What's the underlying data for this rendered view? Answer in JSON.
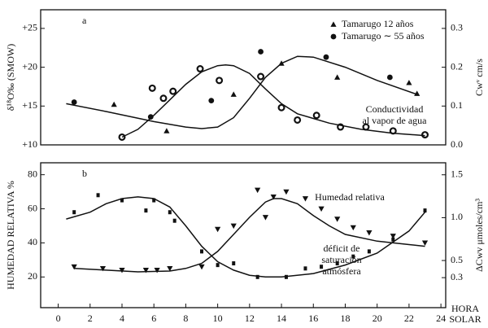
{
  "chart_data": [
    {
      "type": "scatter-line",
      "panel_label": "a",
      "ylabel": "δ¹⁸O‰ (SMOW)",
      "y2label": "Cwᵛ cm/s",
      "xlim": [
        -1.1,
        24.3
      ],
      "ylim": [
        10,
        27.4
      ],
      "y2lim": [
        0,
        0.348
      ],
      "yticks": [
        {
          "value": 25,
          "label": "+25"
        },
        {
          "value": 20,
          "label": "+20"
        },
        {
          "value": 15,
          "label": "+15"
        },
        {
          "value": 10,
          "label": "+10"
        }
      ],
      "y2ticks": [
        0.3,
        0.2,
        0.1,
        {
          "value": 0,
          "label": "0.0"
        }
      ],
      "annotations": [
        "Conductividad",
        "al vapor de agua"
      ],
      "series": [
        {
          "name": "Tamarugo 12 años",
          "marker": "triangle",
          "axis": "y2",
          "color": "#111111",
          "x": [
            3.5,
            6.8,
            11,
            14,
            17.5,
            22,
            22.5
          ],
          "values": [
            0.104,
            0.036,
            0.13,
            0.21,
            0.174,
            0.16,
            0.132
          ]
        },
        {
          "name": "Tamarugo ∼ 55 años",
          "marker": "circle",
          "axis": "y2",
          "color": "#111111",
          "x": [
            1,
            5.8,
            9.6,
            12.7,
            16.8,
            20.8
          ],
          "values": [
            0.11,
            0.072,
            0.114,
            0.24,
            0.226,
            0.174
          ]
        },
        {
          "marker": "open-circle",
          "color": "#111111",
          "x": [
            4,
            5.9,
            6.6,
            7.2,
            8.9,
            10.1,
            12.7,
            14,
            15,
            16.2,
            17.7,
            19.3,
            21,
            23
          ],
          "values": [
            11,
            17.3,
            16,
            16.9,
            19.8,
            18.3,
            18.8,
            14.8,
            13.2,
            13.8,
            12.3,
            12.3,
            11.8,
            11.3
          ]
        },
        {
          "marker": "line",
          "axis": "y2",
          "color": "#111111",
          "x": [
            0.5,
            3,
            6,
            8,
            9,
            10,
            11,
            12,
            13,
            14,
            15,
            16,
            18,
            20,
            22.5
          ],
          "values": [
            0.106,
            0.086,
            0.06,
            0.046,
            0.042,
            0.046,
            0.07,
            0.12,
            0.174,
            0.21,
            0.228,
            0.226,
            0.2,
            0.166,
            0.13
          ]
        },
        {
          "marker": "line",
          "color": "#111111",
          "x": [
            4,
            5,
            6,
            7,
            8,
            9,
            10,
            10.5,
            11,
            12,
            13,
            14,
            15,
            17,
            19,
            21,
            23
          ],
          "values": [
            11,
            12,
            13.8,
            15.8,
            17.8,
            19.4,
            20.2,
            20.3,
            20.2,
            19.2,
            17.2,
            15.3,
            14,
            12.8,
            12,
            11.5,
            11.2
          ]
        }
      ]
    },
    {
      "type": "scatter-line",
      "panel_label": "b",
      "ylabel": "HUMEDAD RELATIVA %",
      "y2label": "ΔCwv μmoles/cm³",
      "xlabel": [
        "HORA",
        "SOLAR"
      ],
      "xlim": [
        -1.1,
        24.3
      ],
      "ylim": [
        2,
        87
      ],
      "y2lim": [
        -0.05,
        1.64
      ],
      "xticks": [
        0,
        2,
        4,
        6,
        8,
        10,
        12,
        14,
        16,
        18,
        20,
        22,
        24
      ],
      "yticks": [
        80,
        60,
        40,
        20
      ],
      "y2ticks": [
        1.5,
        {
          "value": 1,
          "label": "1.0"
        },
        0.5,
        0.3
      ],
      "annotations": [
        "Humedad relativa",
        "déficit de",
        "saturación",
        "atmósfera"
      ],
      "series": [
        {
          "marker": "square",
          "color": "#111111",
          "x": [
            1,
            2.5,
            4,
            5.5,
            6,
            7,
            7.3,
            9,
            10,
            11,
            12.5,
            14.3,
            15.5,
            16.5,
            17.5,
            18.5,
            19.5,
            21,
            23
          ],
          "values": [
            58,
            68,
            65,
            59,
            65,
            58,
            53,
            35,
            27,
            28,
            20,
            20,
            25,
            26,
            28,
            32,
            35,
            42,
            59
          ]
        },
        {
          "marker": "down-triangle",
          "color": "#111111",
          "x": [
            1,
            2.8,
            4,
            5.5,
            6.2,
            7,
            9,
            10,
            11,
            12.5,
            13,
            13.5,
            14.3,
            15.5,
            16.5,
            17.5,
            18.5,
            19.5,
            21,
            23
          ],
          "values": [
            26,
            25,
            24,
            24,
            24,
            25,
            26,
            48,
            50,
            71,
            55,
            67,
            70,
            66,
            60,
            54,
            49,
            46,
            44,
            40
          ]
        },
        {
          "marker": "line",
          "color": "#111111",
          "x": [
            0.5,
            2,
            3,
            4,
            5,
            6,
            7,
            8,
            9,
            10,
            11,
            12,
            13,
            14,
            16,
            18,
            20,
            22,
            23
          ],
          "values": [
            54,
            58,
            63,
            66,
            67,
            66,
            61,
            50,
            38,
            29,
            24,
            21,
            20,
            20,
            22,
            27,
            34,
            47,
            58
          ]
        },
        {
          "marker": "line",
          "color": "#111111",
          "x": [
            1,
            3,
            5,
            7,
            8,
            9,
            10,
            11,
            12,
            13,
            13.5,
            14,
            15,
            16,
            17,
            18,
            20,
            22,
            23
          ],
          "values": [
            25,
            24,
            23,
            23.5,
            25,
            28,
            35,
            45,
            55,
            64,
            66,
            66,
            63,
            56,
            50,
            45,
            41,
            39,
            38
          ]
        }
      ]
    }
  ]
}
